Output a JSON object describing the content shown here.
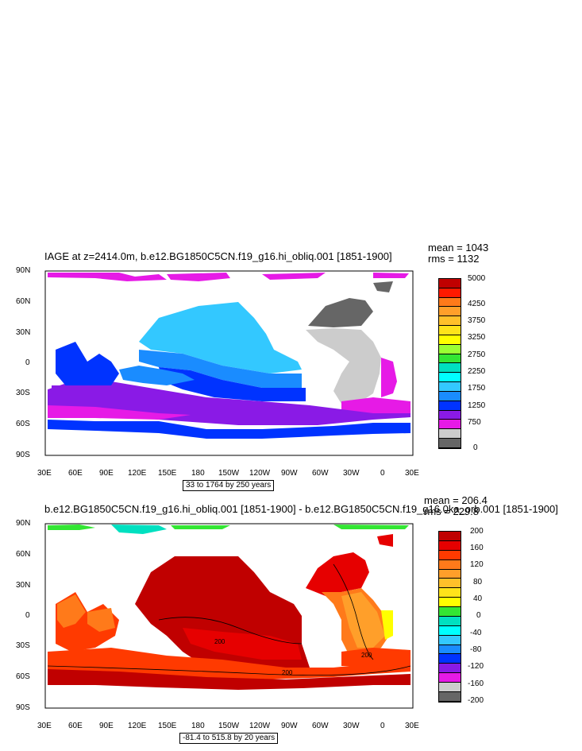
{
  "panels": [
    {
      "title": "IAGE at z=2414.0m, b.e12.BG1850C5CN.f19_g16.hi_obliq.001 [1851-1900]",
      "stats": {
        "mean": "mean = 1043",
        "rms": "rms = 1132"
      },
      "range_note": "33 to 1764 by 250 years",
      "lat_ticks": [
        "90N",
        "60N",
        "30N",
        "0",
        "30S",
        "60S",
        "90S"
      ],
      "lon_ticks": [
        "30E",
        "60E",
        "90E",
        "120E",
        "150E",
        "180",
        "150W",
        "120W",
        "90W",
        "60W",
        "30W",
        "0",
        "30E"
      ],
      "colorbar": {
        "labels": [
          "5000",
          "4250",
          "3750",
          "3250",
          "2750",
          "2250",
          "1750",
          "1250",
          "750",
          "0"
        ],
        "colors": [
          "#c00000",
          "#ff1a00",
          "#ff7a1a",
          "#ff9f2a",
          "#ffc02a",
          "#ffe31a",
          "#ffff00",
          "#9aff33",
          "#33e633",
          "#00e0c0",
          "#00ffff",
          "#33c8ff",
          "#1a8cff",
          "#0033ff",
          "#8a1ae6",
          "#e61ae6",
          "#cccccc",
          "#666666"
        ]
      }
    },
    {
      "title": "b.e12.BG1850C5CN.f19_g16.hi_obliq.001 [1851-1900] - b.e12.BG1850C5CN.f19_g16.0ka_orb.001 [1851-1900]",
      "stats": {
        "mean": "mean = 206.4",
        "rms": "rms = 229.8"
      },
      "range_note": "-81.4 to 515.8 by 20 years",
      "lat_ticks": [
        "90N",
        "60N",
        "30N",
        "0",
        "30S",
        "60S",
        "90S"
      ],
      "lon_ticks": [
        "30E",
        "60E",
        "90E",
        "120E",
        "150E",
        "180",
        "150W",
        "120W",
        "90W",
        "60W",
        "30W",
        "0",
        "30E"
      ],
      "contour_labels": [
        "200",
        "200",
        "200"
      ],
      "colorbar": {
        "labels": [
          "200",
          "160",
          "120",
          "80",
          "40",
          "0",
          "-40",
          "-80",
          "-120",
          "-160",
          "-200"
        ],
        "colors": [
          "#c00000",
          "#e60000",
          "#ff3a00",
          "#ff7a1a",
          "#ff9f2a",
          "#ffc02a",
          "#ffe31a",
          "#ffff00",
          "#33e633",
          "#00e0c0",
          "#00ffff",
          "#33c8ff",
          "#1a8cff",
          "#0033ff",
          "#8a1ae6",
          "#e61ae6",
          "#cccccc",
          "#666666"
        ]
      }
    }
  ]
}
